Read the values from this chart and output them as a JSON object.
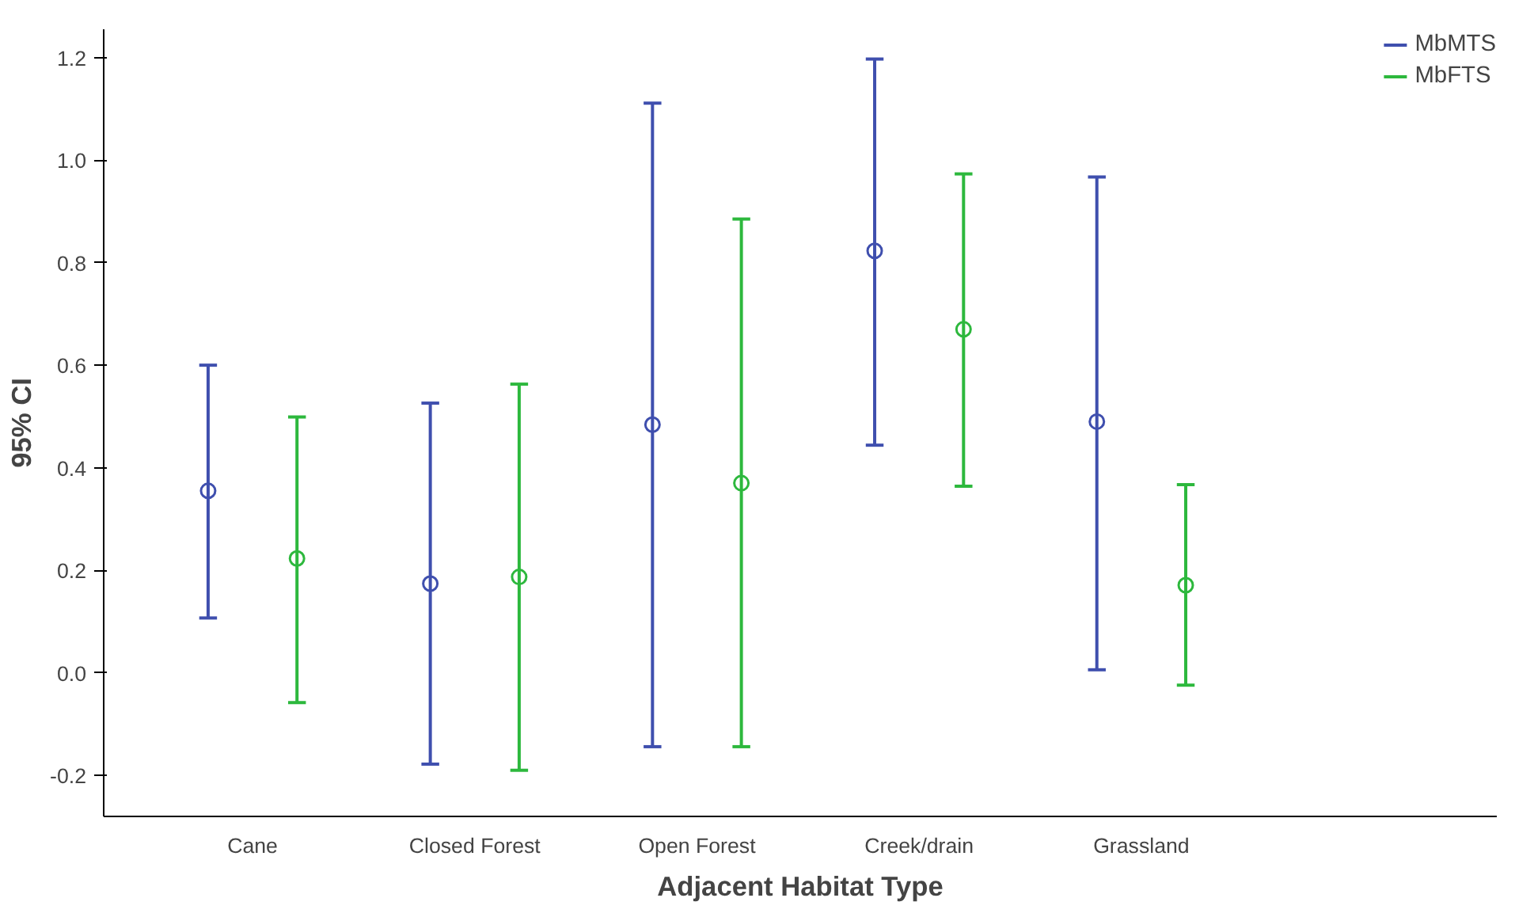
{
  "chart_data": {
    "type": "scatter",
    "xlabel": "Adjacent Habitat Type",
    "ylabel": "95% CI",
    "categories": [
      "Cane",
      "Closed Forest",
      "Open Forest",
      "Creek/drain",
      "Grassland"
    ],
    "series": [
      {
        "name": "MbMTS",
        "color": "#3f4fae",
        "values": [
          0.355,
          0.174,
          0.484,
          0.823,
          0.49
        ],
        "errors": [
          [
            0.107,
            0.6
          ],
          [
            -0.178,
            0.526
          ],
          [
            -0.144,
            1.111
          ],
          [
            0.444,
            1.197
          ],
          [
            0.006,
            0.967
          ]
        ]
      },
      {
        "name": "MbFTS",
        "color": "#2db83d",
        "values": [
          0.223,
          0.187,
          0.37,
          0.67,
          0.171
        ],
        "errors": [
          [
            -0.058,
            0.499
          ],
          [
            -0.19,
            0.563
          ],
          [
            -0.144,
            0.885
          ],
          [
            0.364,
            0.973
          ],
          [
            -0.024,
            0.367
          ]
        ]
      }
    ],
    "ylim": [
      -0.28,
      1.255
    ],
    "yticks": [
      -0.2,
      {
        "value": 0.0,
        "label": "0.0"
      },
      0.2,
      0.4,
      0.6,
      0.8,
      {
        "value": 1.0,
        "label": "1.0"
      },
      1.2
    ],
    "marker": "circle",
    "grid": false,
    "legend": "top right"
  }
}
